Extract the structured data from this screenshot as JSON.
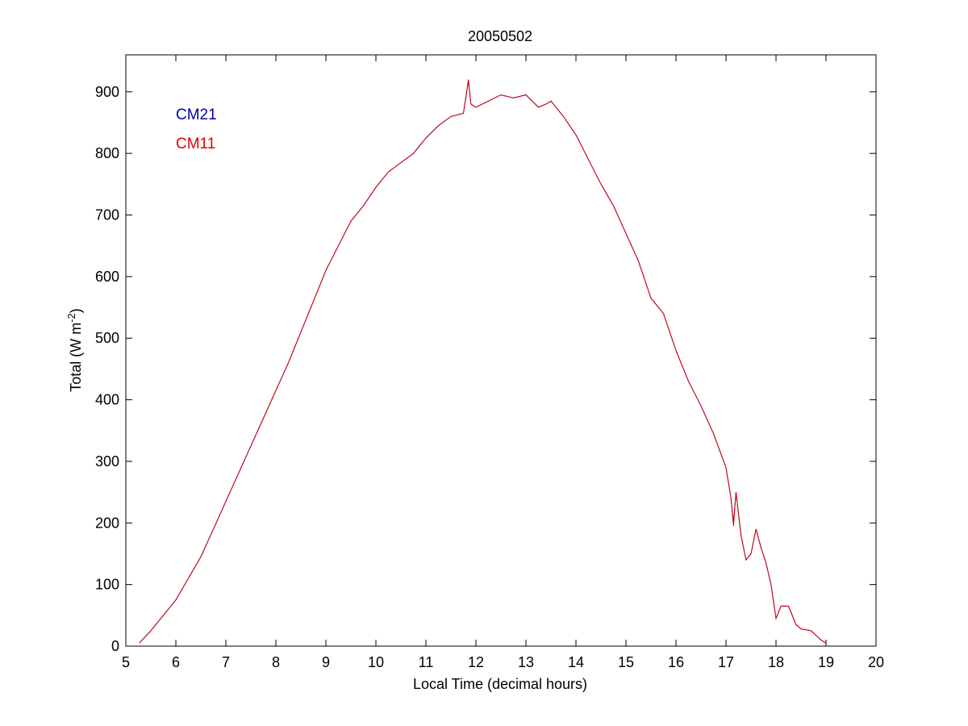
{
  "chart_data": {
    "type": "line",
    "title": "20050502",
    "xlabel": "Local Time (decimal hours)",
    "ylabel_main": "Total (W m",
    "ylabel_sup": "-2",
    "ylabel_close": ")",
    "xlim": [
      5,
      20
    ],
    "ylim": [
      0,
      960
    ],
    "xticks": [
      5,
      6,
      7,
      8,
      9,
      10,
      11,
      12,
      13,
      14,
      15,
      16,
      17,
      18,
      19,
      20
    ],
    "yticks": [
      0,
      100,
      200,
      300,
      400,
      500,
      600,
      700,
      800,
      900
    ],
    "grid": false,
    "legend_position": "top-left",
    "series": [
      {
        "name": "CM21",
        "color": "#0000aa",
        "x": [
          5.27,
          5.5,
          5.75,
          6.0,
          6.25,
          6.5,
          6.75,
          7.0,
          7.25,
          7.5,
          7.75,
          8.0,
          8.25,
          8.5,
          8.75,
          9.0,
          9.25,
          9.5,
          9.75,
          10.0,
          10.25,
          10.5,
          10.75,
          11.0,
          11.25,
          11.5,
          11.75,
          11.85,
          11.9,
          12.0,
          12.25,
          12.5,
          12.75,
          13.0,
          13.25,
          13.4,
          13.5,
          13.75,
          14.0,
          14.25,
          14.5,
          14.75,
          15.0,
          15.25,
          15.5,
          15.75,
          16.0,
          16.25,
          16.5,
          16.75,
          17.0,
          17.1,
          17.15,
          17.2,
          17.3,
          17.4,
          17.5,
          17.6,
          17.7,
          17.8,
          17.9,
          18.0,
          18.1,
          18.25,
          18.4,
          18.5,
          18.7,
          18.9,
          19.0
        ],
        "y": [
          5,
          25,
          50,
          75,
          110,
          145,
          190,
          235,
          280,
          325,
          370,
          415,
          460,
          510,
          560,
          610,
          650,
          690,
          715,
          745,
          770,
          785,
          800,
          825,
          845,
          860,
          865,
          918,
          880,
          875,
          885,
          895,
          890,
          895,
          875,
          880,
          885,
          860,
          830,
          790,
          750,
          715,
          670,
          625,
          565,
          540,
          480,
          430,
          390,
          345,
          290,
          240,
          200,
          250,
          180,
          140,
          150,
          190,
          160,
          135,
          100,
          45,
          65,
          65,
          35,
          28,
          25,
          10,
          5
        ]
      },
      {
        "name": "CM11",
        "color": "#dd0000",
        "x": [
          5.27,
          5.5,
          5.75,
          6.0,
          6.25,
          6.5,
          6.75,
          7.0,
          7.25,
          7.5,
          7.75,
          8.0,
          8.25,
          8.5,
          8.75,
          9.0,
          9.25,
          9.5,
          9.75,
          10.0,
          10.25,
          10.5,
          10.75,
          11.0,
          11.25,
          11.5,
          11.75,
          11.85,
          11.9,
          12.0,
          12.25,
          12.5,
          12.75,
          13.0,
          13.25,
          13.4,
          13.5,
          13.75,
          14.0,
          14.25,
          14.5,
          14.75,
          15.0,
          15.25,
          15.5,
          15.75,
          16.0,
          16.25,
          16.5,
          16.75,
          17.0,
          17.1,
          17.15,
          17.2,
          17.3,
          17.4,
          17.5,
          17.6,
          17.7,
          17.8,
          17.9,
          18.0,
          18.1,
          18.25,
          18.4,
          18.5,
          18.7,
          18.9,
          19.0
        ],
        "y": [
          5,
          25,
          50,
          75,
          110,
          145,
          190,
          235,
          280,
          325,
          370,
          415,
          460,
          510,
          560,
          610,
          650,
          690,
          715,
          745,
          770,
          785,
          800,
          825,
          845,
          860,
          865,
          920,
          880,
          875,
          885,
          895,
          890,
          895,
          875,
          880,
          885,
          860,
          830,
          790,
          750,
          715,
          670,
          625,
          565,
          540,
          480,
          430,
          390,
          345,
          290,
          240,
          195,
          250,
          180,
          140,
          150,
          190,
          160,
          135,
          100,
          45,
          65,
          65,
          35,
          28,
          25,
          10,
          5
        ]
      }
    ]
  }
}
